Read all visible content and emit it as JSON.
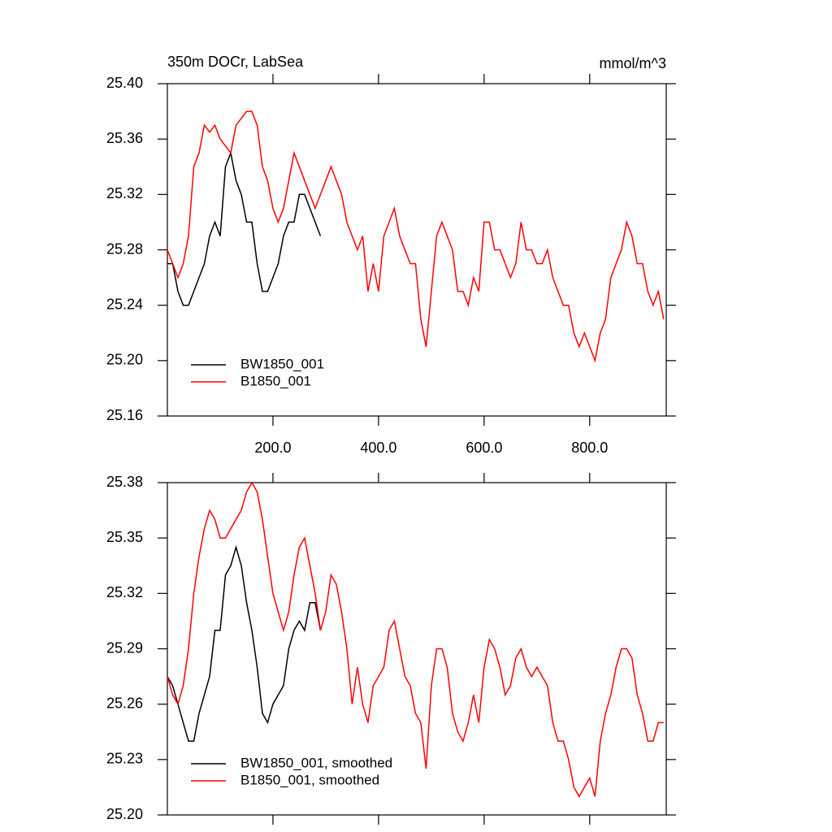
{
  "chart_data": [
    {
      "type": "line",
      "title": "350m DOCr, LabSea",
      "subtitle": "mmol/m^3",
      "x": [
        0,
        10,
        20,
        30,
        40,
        50,
        60,
        70,
        80,
        90,
        100,
        110,
        120,
        130,
        140,
        150,
        160,
        170,
        180,
        190,
        200,
        210,
        220,
        230,
        240,
        250,
        260,
        270,
        280,
        290,
        300,
        310,
        320,
        330,
        340,
        350,
        360,
        370,
        380,
        390,
        400,
        410,
        420,
        430,
        440,
        450,
        460,
        470,
        480,
        490,
        500,
        510,
        520,
        530,
        540,
        550,
        560,
        570,
        580,
        590,
        600,
        610,
        620,
        630,
        640,
        650,
        660,
        670,
        680,
        690,
        700,
        710,
        720,
        730,
        740,
        750,
        760,
        770,
        780,
        790,
        800,
        810,
        820,
        830,
        840,
        850,
        860,
        870,
        880,
        890,
        900,
        910,
        920,
        930,
        940
      ],
      "series": [
        {
          "name": "BW1850_001",
          "color": "#000000",
          "values": [
            25.27,
            25.27,
            25.25,
            25.24,
            25.24,
            25.25,
            25.26,
            25.27,
            25.29,
            25.3,
            25.29,
            25.34,
            25.35,
            25.33,
            25.32,
            25.3,
            25.3,
            25.27,
            25.25,
            25.25,
            25.26,
            25.27,
            25.29,
            25.3,
            25.3,
            25.32,
            25.32,
            25.31,
            25.3,
            25.29,
            null,
            null,
            null,
            null,
            null,
            null,
            null,
            null,
            null,
            null,
            null,
            null,
            null,
            null,
            null,
            null,
            null,
            null,
            null,
            null,
            null,
            null,
            null,
            null,
            null,
            null,
            null,
            null,
            null,
            null,
            null,
            null,
            null,
            null,
            null,
            null,
            null,
            null,
            null,
            null,
            null,
            null,
            null,
            null,
            null,
            null,
            null,
            null,
            null,
            null,
            null,
            null,
            null,
            null,
            null,
            null,
            null,
            null,
            null,
            null,
            null,
            null,
            null,
            null,
            null
          ]
        },
        {
          "name": "B1850_001",
          "color": "#ff0000",
          "values": [
            25.28,
            25.27,
            25.26,
            25.27,
            25.29,
            25.34,
            25.35,
            25.37,
            25.365,
            25.37,
            25.36,
            25.355,
            25.35,
            25.37,
            25.375,
            25.38,
            25.38,
            25.37,
            25.34,
            25.33,
            25.31,
            25.3,
            25.31,
            25.33,
            25.35,
            25.34,
            25.33,
            25.32,
            25.31,
            25.32,
            25.33,
            25.34,
            25.33,
            25.32,
            25.3,
            25.29,
            25.28,
            25.29,
            25.25,
            25.27,
            25.25,
            25.29,
            25.3,
            25.31,
            25.29,
            25.28,
            25.27,
            25.27,
            25.23,
            25.21,
            25.25,
            25.29,
            25.3,
            25.29,
            25.28,
            25.25,
            25.25,
            25.24,
            25.26,
            25.25,
            25.3,
            25.3,
            25.28,
            25.28,
            25.27,
            25.26,
            25.27,
            25.3,
            25.28,
            25.28,
            25.27,
            25.27,
            25.28,
            25.26,
            25.25,
            25.24,
            25.24,
            25.22,
            25.21,
            25.22,
            25.21,
            25.2,
            25.22,
            25.23,
            25.26,
            25.27,
            25.28,
            25.3,
            25.29,
            25.27,
            25.27,
            25.25,
            25.24,
            25.25,
            25.23
          ]
        }
      ],
      "xlim": [
        0,
        945
      ],
      "xticks": [
        {
          "value": 200,
          "label": "200.0"
        },
        {
          "value": 400,
          "label": "400.0"
        },
        {
          "value": 600,
          "label": "600.0"
        },
        {
          "value": 800,
          "label": "800.0"
        }
      ],
      "xtick_labels": true,
      "ylim": [
        25.16,
        25.4
      ],
      "yticks": [
        25.16,
        {
          "value": 25.2,
          "label": "25.20"
        },
        25.24,
        25.28,
        25.32,
        25.36,
        {
          "value": 25.4,
          "label": "25.40"
        }
      ],
      "legend": "lower left"
    },
    {
      "type": "line",
      "x": [
        0,
        10,
        20,
        30,
        40,
        50,
        60,
        70,
        80,
        90,
        100,
        110,
        120,
        130,
        140,
        150,
        160,
        170,
        180,
        190,
        200,
        210,
        220,
        230,
        240,
        250,
        260,
        270,
        280,
        290,
        300,
        310,
        320,
        330,
        340,
        350,
        360,
        370,
        380,
        390,
        400,
        410,
        420,
        430,
        440,
        450,
        460,
        470,
        480,
        490,
        500,
        510,
        520,
        530,
        540,
        550,
        560,
        570,
        580,
        590,
        600,
        610,
        620,
        630,
        640,
        650,
        660,
        670,
        680,
        690,
        700,
        710,
        720,
        730,
        740,
        750,
        760,
        770,
        780,
        790,
        800,
        810,
        820,
        830,
        840,
        850,
        860,
        870,
        880,
        890,
        900,
        910,
        920,
        930,
        940
      ],
      "series": [
        {
          "name": "BW1850_001, smoothed",
          "color": "#000000",
          "values": [
            25.275,
            25.27,
            25.26,
            25.25,
            25.24,
            25.24,
            25.255,
            25.265,
            25.275,
            25.3,
            25.3,
            25.33,
            25.335,
            25.345,
            25.335,
            25.315,
            25.3,
            25.28,
            25.255,
            25.25,
            25.26,
            25.265,
            25.27,
            25.29,
            25.3,
            25.305,
            25.3,
            25.315,
            25.315,
            25.3,
            null,
            null,
            null,
            null,
            null,
            null,
            null,
            null,
            null,
            null,
            null,
            null,
            null,
            null,
            null,
            null,
            null,
            null,
            null,
            null,
            null,
            null,
            null,
            null,
            null,
            null,
            null,
            null,
            null,
            null,
            null,
            null,
            null,
            null,
            null,
            null,
            null,
            null,
            null,
            null,
            null,
            null,
            null,
            null,
            null,
            null,
            null,
            null,
            null,
            null,
            null,
            null,
            null,
            null,
            null,
            null,
            null,
            null,
            null,
            null,
            null,
            null,
            null,
            null,
            null
          ]
        },
        {
          "name": "B1850_001, smoothed",
          "color": "#ff0000",
          "values": [
            25.275,
            25.265,
            25.26,
            25.27,
            25.29,
            25.32,
            25.34,
            25.355,
            25.365,
            25.36,
            25.35,
            25.35,
            25.355,
            25.36,
            25.365,
            25.375,
            25.38,
            25.375,
            25.36,
            25.34,
            25.32,
            25.31,
            25.3,
            25.31,
            25.33,
            25.345,
            25.35,
            25.335,
            25.32,
            25.3,
            25.31,
            25.33,
            25.325,
            25.31,
            25.29,
            25.26,
            25.28,
            25.26,
            25.25,
            25.27,
            25.275,
            25.28,
            25.3,
            25.305,
            25.29,
            25.275,
            25.27,
            25.255,
            25.25,
            25.225,
            25.27,
            25.29,
            25.29,
            25.28,
            25.255,
            25.245,
            25.24,
            25.25,
            25.265,
            25.25,
            25.28,
            25.295,
            25.29,
            25.28,
            25.265,
            25.27,
            25.285,
            25.29,
            25.28,
            25.275,
            25.28,
            25.275,
            25.27,
            25.25,
            25.24,
            25.24,
            25.23,
            25.215,
            25.21,
            25.215,
            25.22,
            25.21,
            25.24,
            25.255,
            25.265,
            25.28,
            25.29,
            25.29,
            25.285,
            25.265,
            25.255,
            25.24,
            25.24,
            25.25,
            25.25
          ]
        }
      ],
      "xlim": [
        0,
        945
      ],
      "xticks": [
        200,
        400,
        600,
        800
      ],
      "xtick_labels": false,
      "ylim": [
        25.2,
        25.38
      ],
      "yticks": [
        {
          "value": 25.2,
          "label": "25.20"
        },
        25.23,
        25.26,
        25.29,
        25.32,
        25.35,
        25.38
      ],
      "legend": "lower left"
    }
  ]
}
